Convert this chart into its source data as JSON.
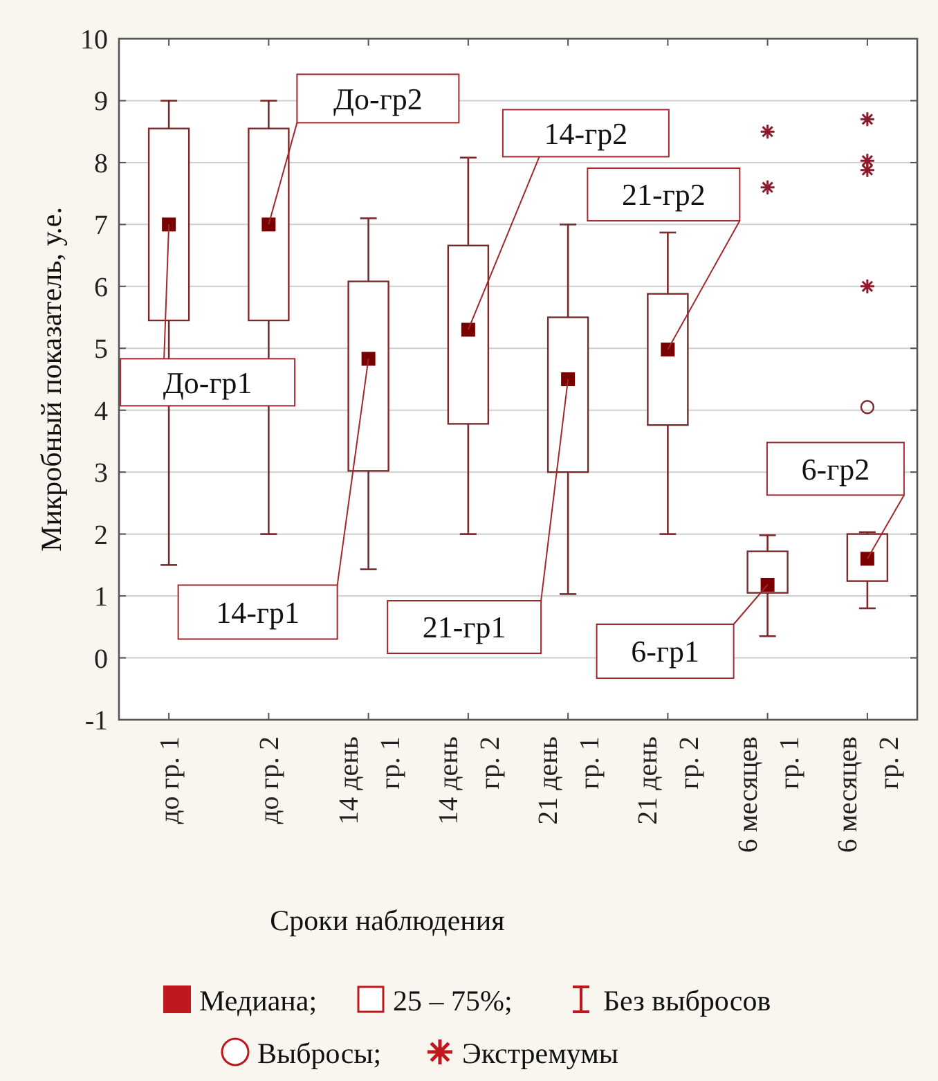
{
  "chart_data": {
    "type": "box",
    "ylabel": "Микробный показатель, у.е.",
    "xlabel": "Сроки наблюдения",
    "categories": [
      "до гр. 1",
      "до гр. 2",
      "14 день\nгр. 1",
      "14 день\nгр. 2",
      "21 день\nгр. 1",
      "21 день\nгр. 2",
      "6 месяцев\nгр. 1",
      "6 месяцев\nгр. 2"
    ],
    "ylim": [
      -1,
      10
    ],
    "yticks": [
      -1,
      0,
      1,
      2,
      3,
      4,
      5,
      6,
      7,
      8,
      9,
      10
    ],
    "grid": "y",
    "legend": "bottom",
    "series": [
      {
        "type": "box",
        "color": "#7a2a2a",
        "boxes": [
          {
            "low": 1.5,
            "q1": 5.45,
            "median": 7,
            "q3": 8.55,
            "high": 9
          },
          {
            "low": 2,
            "q1": 5.45,
            "median": 7,
            "q3": 8.55,
            "high": 9
          },
          {
            "low": 1.43,
            "q1": 3.02,
            "median": 4.83,
            "q3": 6.08,
            "high": 7.1
          },
          {
            "low": 2,
            "q1": 3.78,
            "median": 5.3,
            "q3": 6.66,
            "high": 8.08
          },
          {
            "low": 1.03,
            "q1": 3,
            "median": 4.5,
            "q3": 5.5,
            "high": 7
          },
          {
            "low": 2,
            "q1": 3.76,
            "median": 4.98,
            "q3": 5.88,
            "high": 6.87
          },
          {
            "low": 0.35,
            "q1": 1.05,
            "median": 1.18,
            "q3": 1.72,
            "high": 1.98
          },
          {
            "low": 0.8,
            "q1": 1.24,
            "median": 1.6,
            "q3": 2,
            "high": 2.03,
            "outliers": [
              4.05
            ]
          }
        ]
      },
      {
        "type": "scatter",
        "name": "Экстремумы",
        "color": "#8b1a2a",
        "marker": "cross",
        "x": [
          "6 месяцев\nгр. 1",
          "6 месяцев\nгр. 1",
          "6 месяцев\nгр. 2",
          "6 месяцев\nгр. 2",
          "6 месяцев\nгр. 2",
          "6 месяцев\nгр. 2"
        ],
        "values": [
          8.5,
          7.6,
          8.7,
          8.03,
          7.88,
          6
        ]
      }
    ],
    "annotations": [
      {
        "text": "До-гр1",
        "x": "до гр. 1",
        "y": 7
      },
      {
        "text": "До-гр2",
        "x": "до гр. 2",
        "y": 7
      },
      {
        "text": "14-гр1",
        "x": "14 день\nгр. 1",
        "y": 4.83
      },
      {
        "text": "14-гр2",
        "x": "14 день\nгр. 2",
        "y": 5.3
      },
      {
        "text": "21-гр1",
        "x": "21 день\nгр. 1",
        "y": 4.5
      },
      {
        "text": "21-гр2",
        "x": "21 день\nгр. 2",
        "y": 4.98
      },
      {
        "text": "6-гр1",
        "x": "6 месяцев\nгр. 1",
        "y": 1.18
      },
      {
        "text": "6-гр2",
        "x": "6 месяцев\nгр. 2",
        "y": 1.6
      },
      "Медиана;",
      "25 – 75%;",
      "Без выбросов",
      "Выбросы;"
    ]
  }
}
